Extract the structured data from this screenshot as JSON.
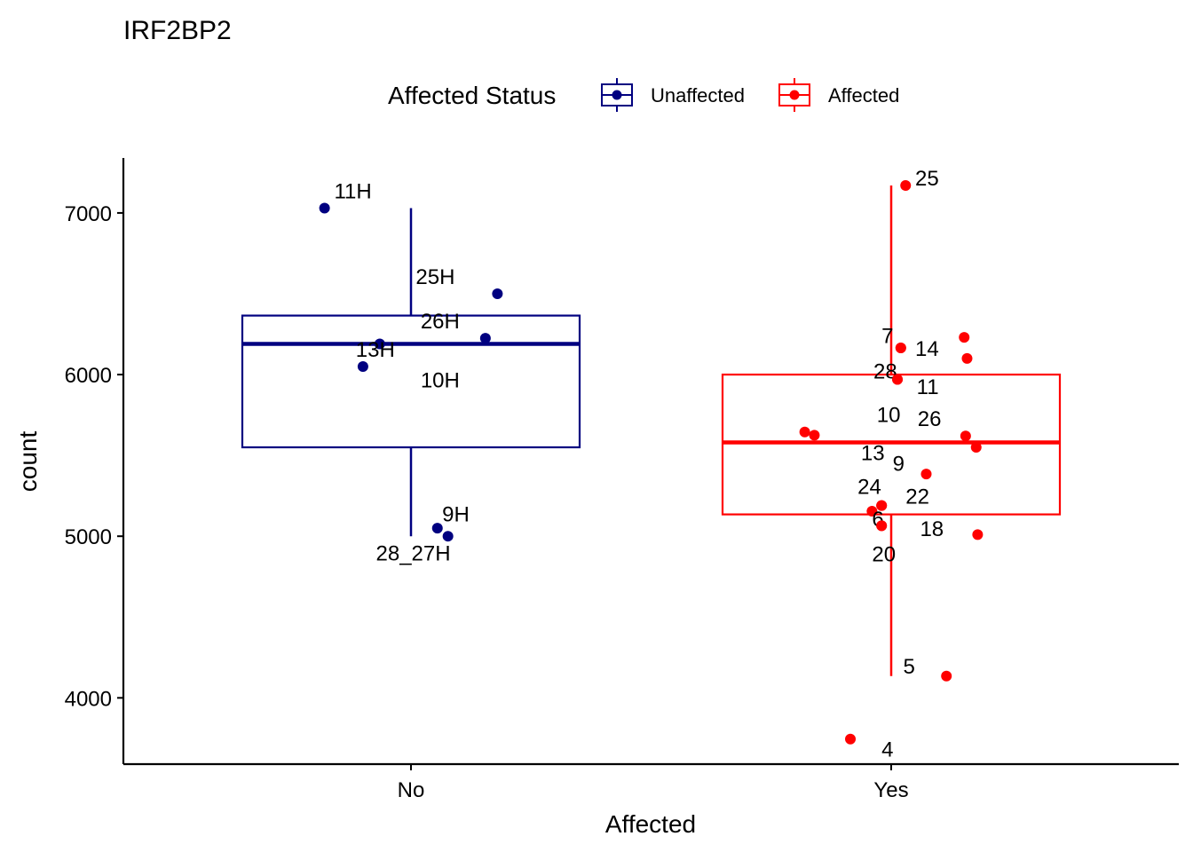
{
  "chart_data": {
    "type": "box",
    "title": "IRF2BP2",
    "xlabel": "Affected",
    "ylabel": "count",
    "ylim": [
      3590,
      7340
    ],
    "yticks": [
      4000,
      5000,
      6000,
      7000
    ],
    "categories": [
      "No",
      "Yes"
    ],
    "legend": {
      "title": "Affected Status",
      "position": "top",
      "entries": [
        "Unaffected",
        "Affected"
      ]
    },
    "grid": false,
    "series": [
      {
        "name": "Unaffected",
        "category": "No",
        "color": "#000080",
        "box": {
          "whisker_low": 5000,
          "q1": 5550,
          "median": 6190,
          "q3": 6365,
          "whisker_high": 7030
        },
        "points": [
          {
            "label": "11H",
            "jitter": -0.18,
            "y": 7030,
            "label_dx": 0.02,
            "label_dy": 110
          },
          {
            "label": "25H",
            "jitter": 0.18,
            "y": 6500,
            "label_dx": -0.17,
            "label_dy": 110
          },
          {
            "label": "26H",
            "jitter": 0.155,
            "y": 6225,
            "label_dx": -0.135,
            "label_dy": 110
          },
          {
            "label": "13H",
            "jitter": -0.065,
            "y": 6190,
            "label_dx": -0.05,
            "label_dy": -30
          },
          {
            "label": "10H",
            "jitter": -0.1,
            "y": 6050,
            "label_dx": 0.12,
            "label_dy": -80
          },
          {
            "label": "9H",
            "jitter": 0.055,
            "y": 5050,
            "label_dx": 0.01,
            "label_dy": 90
          },
          {
            "label": "28_27H",
            "jitter": 0.077,
            "y": 5000,
            "label_dx": -0.15,
            "label_dy": -100
          }
        ]
      },
      {
        "name": "Affected",
        "category": "Yes",
        "color": "#FF0000",
        "box": {
          "whisker_low": 4135,
          "q1": 5135,
          "median": 5580,
          "q3": 6000,
          "whisker_high": 7170
        },
        "points": [
          {
            "label": "25",
            "jitter": 0.03,
            "y": 7170,
            "label_dx": 0.02,
            "label_dy": 50
          },
          {
            "label": "7",
            "jitter": 0.02,
            "y": 6165,
            "label_dx": -0.04,
            "label_dy": 80
          },
          {
            "label": "14",
            "jitter": 0.02,
            "y": 6165,
            "label_dx": 0.03,
            "label_dy": 0
          },
          {
            "label": "28",
            "jitter": 0.013,
            "y": 5970,
            "label_dx": -0.05,
            "label_dy": 55
          },
          {
            "label": "11",
            "jitter": 0.013,
            "y": 5970,
            "label_dx": 0.04,
            "label_dy": -40
          },
          {
            "label": "",
            "jitter": 0.152,
            "y": 6230,
            "label_dx": 0,
            "label_dy": 0
          },
          {
            "label": "",
            "jitter": 0.158,
            "y": 6100,
            "label_dx": 0,
            "label_dy": 0
          },
          {
            "label": "10",
            "jitter": -0.18,
            "y": 5645,
            "label_dx": 0.15,
            "label_dy": 110
          },
          {
            "label": "",
            "jitter": -0.16,
            "y": 5625,
            "label_dx": 0,
            "label_dy": 0
          },
          {
            "label": "26",
            "jitter": 0.155,
            "y": 5620,
            "label_dx": -0.1,
            "label_dy": 110
          },
          {
            "label": "13",
            "jitter": 0.177,
            "y": 5550,
            "label_dx": -0.24,
            "label_dy": -30
          },
          {
            "label": "9",
            "jitter": 0.073,
            "y": 5385,
            "label_dx": -0.07,
            "label_dy": 70
          },
          {
            "label": "22",
            "jitter": -0.02,
            "y": 5190,
            "label_dx": 0.05,
            "label_dy": 60
          },
          {
            "label": "24",
            "jitter": -0.02,
            "y": 5190,
            "label_dx": -0.05,
            "label_dy": 120
          },
          {
            "label": "",
            "jitter": -0.04,
            "y": 5155,
            "label_dx": 0,
            "label_dy": 0
          },
          {
            "label": "6",
            "jitter": -0.02,
            "y": 5065,
            "label_dx": -0.02,
            "label_dy": 45
          },
          {
            "label": "18",
            "jitter": 0.18,
            "y": 5010,
            "label_dx": -0.12,
            "label_dy": 40
          },
          {
            "label": "20",
            "jitter": -0.02,
            "y": 5065,
            "label_dx": -0.02,
            "label_dy": -170
          },
          {
            "label": "5",
            "jitter": 0.115,
            "y": 4135,
            "label_dx": -0.09,
            "label_dy": 65
          },
          {
            "label": "4",
            "jitter": -0.085,
            "y": 3745,
            "label_dx": 0.065,
            "label_dy": -60
          }
        ]
      }
    ]
  }
}
